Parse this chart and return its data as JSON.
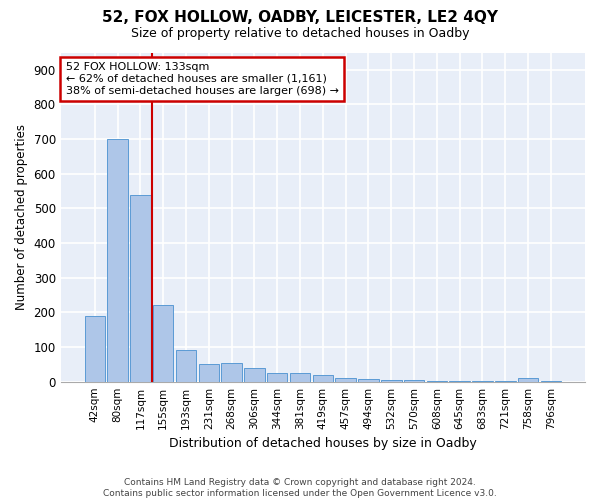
{
  "title": "52, FOX HOLLOW, OADBY, LEICESTER, LE2 4QY",
  "subtitle": "Size of property relative to detached houses in Oadby",
  "xlabel": "Distribution of detached houses by size in Oadby",
  "ylabel": "Number of detached properties",
  "bar_color": "#aec6e8",
  "bar_edge_color": "#5b9bd5",
  "categories": [
    "42sqm",
    "80sqm",
    "117sqm",
    "155sqm",
    "193sqm",
    "231sqm",
    "268sqm",
    "306sqm",
    "344sqm",
    "381sqm",
    "419sqm",
    "457sqm",
    "494sqm",
    "532sqm",
    "570sqm",
    "608sqm",
    "645sqm",
    "683sqm",
    "721sqm",
    "758sqm",
    "796sqm"
  ],
  "values": [
    190,
    700,
    540,
    220,
    90,
    50,
    55,
    40,
    25,
    25,
    20,
    10,
    8,
    5,
    4,
    2,
    2,
    2,
    2,
    10,
    2
  ],
  "ylim": [
    0,
    950
  ],
  "yticks": [
    0,
    100,
    200,
    300,
    400,
    500,
    600,
    700,
    800,
    900
  ],
  "property_line_index": 2,
  "annotation_line1": "52 FOX HOLLOW: 133sqm",
  "annotation_line2": "← 62% of detached houses are smaller (1,161)",
  "annotation_line3": "38% of semi-detached houses are larger (698) →",
  "annotation_box_color": "#ffffff",
  "annotation_border_color": "#cc0000",
  "footer_line1": "Contains HM Land Registry data © Crown copyright and database right 2024.",
  "footer_line2": "Contains public sector information licensed under the Open Government Licence v3.0.",
  "background_color": "#e8eef8",
  "grid_color": "#ffffff"
}
